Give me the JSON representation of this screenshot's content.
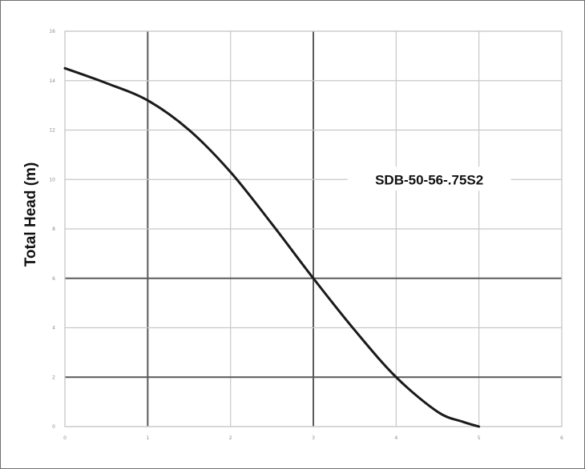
{
  "chart_data": {
    "type": "line",
    "title": "",
    "xlabel": "",
    "ylabel": "Total Head (m)",
    "xlim": [
      0,
      6
    ],
    "ylim": [
      0,
      16
    ],
    "x_ticks": [
      "0",
      "1",
      "2",
      "3",
      "4",
      "5",
      "6"
    ],
    "y_ticks": [
      "0",
      "2",
      "4",
      "6",
      "8",
      "10",
      "12",
      "14",
      "16"
    ],
    "grid": true,
    "legend": "none",
    "series": [
      {
        "name": "SDB-50-56-.75S2",
        "color": "#1a1a1a",
        "x": [
          0,
          0.5,
          1.0,
          1.5,
          2.0,
          2.5,
          3.0,
          3.5,
          4.0,
          4.5,
          4.8,
          5.0
        ],
        "y": [
          14.5,
          13.9,
          13.2,
          12.0,
          10.3,
          8.2,
          6.0,
          3.9,
          2.0,
          0.6,
          0.2,
          0
        ]
      }
    ],
    "annotation": {
      "text": "SDB-50-56-.75S2",
      "anchor_x": 4.4,
      "anchor_y": 10
    },
    "colors": {
      "grid": "#c8c8c8",
      "grid_bold": "#5a5a5a",
      "curve": "#1a1a1a",
      "frame": "#6f6f6f"
    }
  }
}
